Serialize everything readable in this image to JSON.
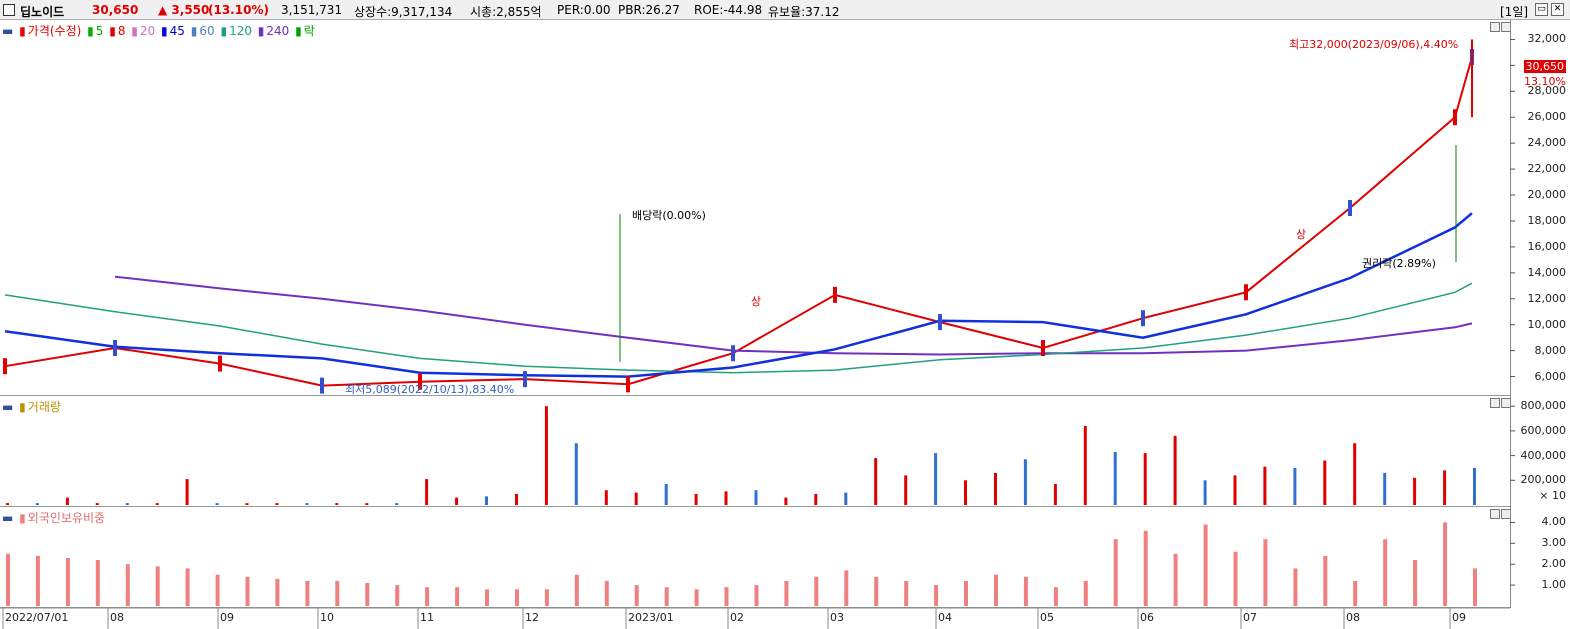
{
  "header": {
    "title": "딥노이드",
    "price": "30,650",
    "change": "▲ 3,550",
    "change_pct": "(13.10%)",
    "volume": "3,151,731",
    "listed_shares": "상장수:9,317,134",
    "market_cap": "시총:2,855억",
    "per": "PER:0.00",
    "pbr": "PBR:26.27",
    "roe": "ROE:-44.98",
    "float_ratio": "유보율:37.12",
    "period": "[1일]"
  },
  "price_legend": {
    "label": "가격(수정)",
    "ma": [
      {
        "label": "5",
        "color": "#00b000"
      },
      {
        "label": "8",
        "color": "#e00000"
      },
      {
        "label": "20",
        "color": "#d070c0"
      },
      {
        "label": "45",
        "color": "#0000d0"
      },
      {
        "label": "60",
        "color": "#5080c0"
      },
      {
        "label": "120",
        "color": "#20a080"
      },
      {
        "label": "240",
        "color": "#7030c0"
      }
    ],
    "rak_label": "락"
  },
  "volume_legend": {
    "label": "거래량"
  },
  "foreign_legend": {
    "label": "외국인보유비중"
  },
  "price_axis": [
    "32,000",
    "30,000",
    "28,000",
    "26,000",
    "24,000",
    "22,000",
    "20,000",
    "18,000",
    "16,000",
    "14,000",
    "12,000",
    "10,000",
    "8,000",
    "6,000"
  ],
  "current_price_tag": "30,650",
  "current_pct_tag": "13.10%",
  "volume_axis": [
    "800,000",
    "600,000",
    "400,000",
    "200,000"
  ],
  "volume_unit": "× 10",
  "foreign_axis": [
    "4.00",
    "3.00",
    "2.00",
    "1.00"
  ],
  "x_labels": [
    "2022/07/01",
    "08",
    "09",
    "10",
    "11",
    "12",
    "2023/01",
    "02",
    "03",
    "04",
    "05",
    "06",
    "07",
    "08",
    "09"
  ],
  "annotations": {
    "high": "최고32,000(2023/09/06),4.40%",
    "low": "최저5,089(2022/10/13),83.40%",
    "dividend": "배당락(0.00%)",
    "rights": "권리락(2.89%)",
    "limit_up": "상"
  },
  "chart_data": {
    "type": "line",
    "title": "딥노이드",
    "x": [
      "2022/07/01",
      "2022/08",
      "2022/09",
      "2022/10",
      "2022/11",
      "2022/12",
      "2023/01",
      "2023/02",
      "2023/03",
      "2023/04",
      "2023/05",
      "2023/06",
      "2023/07",
      "2023/08",
      "2023/09",
      "2023/09/06"
    ],
    "series": [
      {
        "name": "가격(수정)",
        "values": [
          6800,
          8200,
          7000,
          5300,
          5600,
          5800,
          5400,
          7800,
          12300,
          10200,
          8200,
          10500,
          12500,
          19000,
          26000,
          30650
        ]
      },
      {
        "name": "240",
        "values": [
          null,
          13700,
          12800,
          12000,
          11100,
          10000,
          9000,
          8000,
          7800,
          7700,
          7800,
          7800,
          8000,
          8800,
          9800,
          10100
        ]
      },
      {
        "name": "120",
        "values": [
          12300,
          11000,
          9900,
          8500,
          7400,
          6800,
          6500,
          6300,
          6500,
          7300,
          7700,
          8200,
          9200,
          10500,
          12500,
          13200
        ]
      },
      {
        "name": "45",
        "values": [
          9500,
          8300,
          7800,
          7400,
          6300,
          6100,
          6000,
          6700,
          8100,
          10300,
          10200,
          9000,
          10800,
          13600,
          17500,
          18600
        ]
      }
    ],
    "high": {
      "value": 32000,
      "date": "2023/09/06",
      "pct": "4.40%"
    },
    "low": {
      "value": 5089,
      "date": "2022/10/13",
      "pct": "83.40%"
    },
    "ylim": [
      4500,
      33500
    ],
    "volume": {
      "ylim": [
        0,
        850000
      ],
      "values": [
        15000,
        15000,
        60000,
        15000,
        15000,
        15000,
        210000,
        15000,
        15000,
        15000,
        15000,
        15000,
        15000,
        15000,
        210000,
        60000,
        70000,
        90000,
        800000,
        500000,
        120000,
        100000,
        170000,
        90000,
        110000,
        120000,
        60000,
        90000,
        100000,
        380000,
        240000,
        420000,
        200000,
        260000,
        370000,
        170000,
        640000,
        430000,
        420000,
        560000,
        200000,
        240000,
        310000,
        300000,
        360000,
        500000,
        260000,
        220000,
        280000,
        300000
      ]
    },
    "foreign_ratio": {
      "ylim": [
        0,
        4.5
      ],
      "values": [
        2.5,
        2.4,
        2.3,
        2.2,
        2.0,
        1.9,
        1.8,
        1.5,
        1.4,
        1.3,
        1.2,
        1.2,
        1.1,
        1.0,
        0.9,
        0.9,
        0.8,
        0.8,
        0.8,
        1.5,
        1.2,
        1.0,
        0.9,
        0.8,
        0.9,
        1.0,
        1.2,
        1.4,
        1.7,
        1.4,
        1.2,
        1.0,
        1.2,
        1.5,
        1.4,
        0.9,
        1.2,
        3.2,
        3.6,
        2.5,
        3.9,
        2.6,
        3.2,
        1.8,
        2.4,
        1.2,
        3.2,
        2.2,
        4.0,
        1.8
      ]
    }
  }
}
